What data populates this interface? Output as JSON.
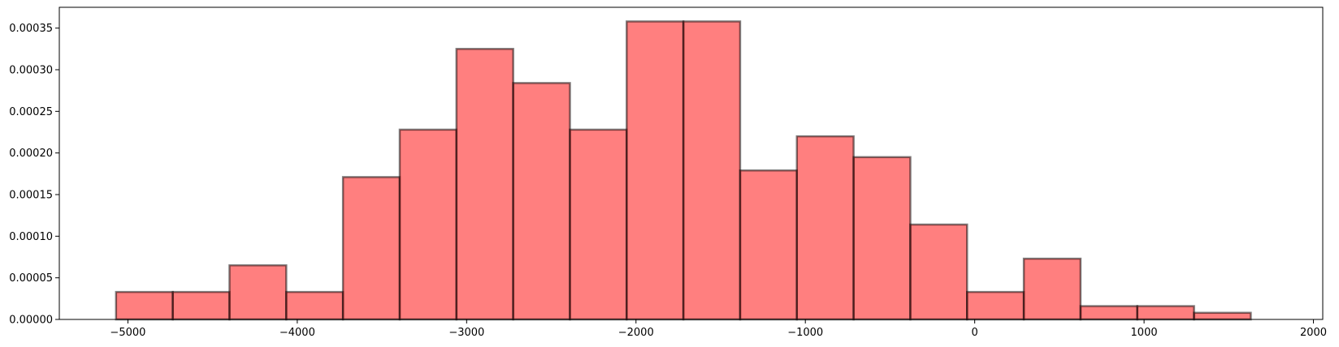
{
  "chart_data": {
    "type": "bar",
    "subtype": "histogram",
    "title": "",
    "xlabel": "",
    "ylabel": "",
    "bin_edges": [
      -5070,
      -4735,
      -4400,
      -4065,
      -3730,
      -3395,
      -3060,
      -2725,
      -2390,
      -2055,
      -1720,
      -1385,
      -1050,
      -715,
      -380,
      -45,
      290,
      625,
      960,
      1295,
      1630
    ],
    "values": [
      3.3e-05,
      3.3e-05,
      6.5e-05,
      3.3e-05,
      0.000171,
      0.000228,
      0.000325,
      0.000284,
      0.000228,
      0.000358,
      0.000358,
      0.000179,
      0.00022,
      0.000195,
      0.000114,
      3.3e-05,
      7.3e-05,
      1.6e-05,
      1.6e-05,
      8e-06
    ],
    "xlim": [
      -5405,
      2055
    ],
    "ylim": [
      0,
      0.000375
    ],
    "x_ticks": [
      -5000,
      -4000,
      -3000,
      -2000,
      -1000,
      0,
      1000,
      2000
    ],
    "x_tick_labels": [
      "−5000",
      "−4000",
      "−3000",
      "−2000",
      "−1000",
      "0",
      "1000",
      "2000"
    ],
    "y_ticks": [
      0,
      5e-05,
      0.0001,
      0.00015,
      0.0002,
      0.00025,
      0.0003,
      0.00035
    ],
    "y_tick_labels": [
      "0.00000",
      "0.00005",
      "0.00010",
      "0.00015",
      "0.00020",
      "0.00025",
      "0.00030",
      "0.00035"
    ],
    "grid": false,
    "colors": {
      "bar_fill": "#ff0000",
      "bar_fill_opacity": 0.5,
      "bar_edge": "#000000",
      "bar_edge_opacity": 0.5
    }
  }
}
